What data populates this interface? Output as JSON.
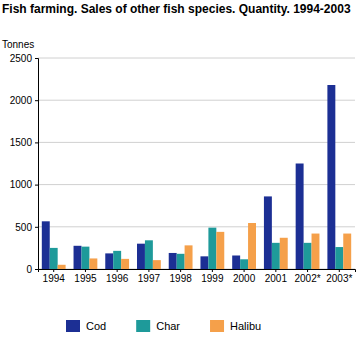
{
  "chart_data": {
    "type": "bar",
    "title": "Fish farming. Sales of other fish species. Quantity. 1994-2003",
    "y_label": "Tonnes",
    "categories": [
      "1994",
      "1995",
      "1996",
      "1997",
      "1998",
      "1999",
      "2000",
      "2001",
      "2002*",
      "2003*"
    ],
    "series": [
      {
        "name": "Cod",
        "color": "#1c2f94",
        "values": [
          565,
          275,
          185,
          300,
          190,
          150,
          160,
          860,
          1250,
          2180
        ]
      },
      {
        "name": "Char",
        "color": "#1e9a9a",
        "values": [
          250,
          265,
          215,
          340,
          180,
          490,
          115,
          310,
          310,
          260
        ]
      },
      {
        "name": "Halibu",
        "color": "#f5a04a",
        "values": [
          50,
          125,
          120,
          105,
          280,
          440,
          545,
          370,
          420,
          420
        ]
      }
    ],
    "ylim": [
      0,
      2500
    ],
    "yticks": [
      0,
      500,
      1000,
      1500,
      2000,
      2500
    ],
    "grid": true,
    "legend": "bottom"
  }
}
